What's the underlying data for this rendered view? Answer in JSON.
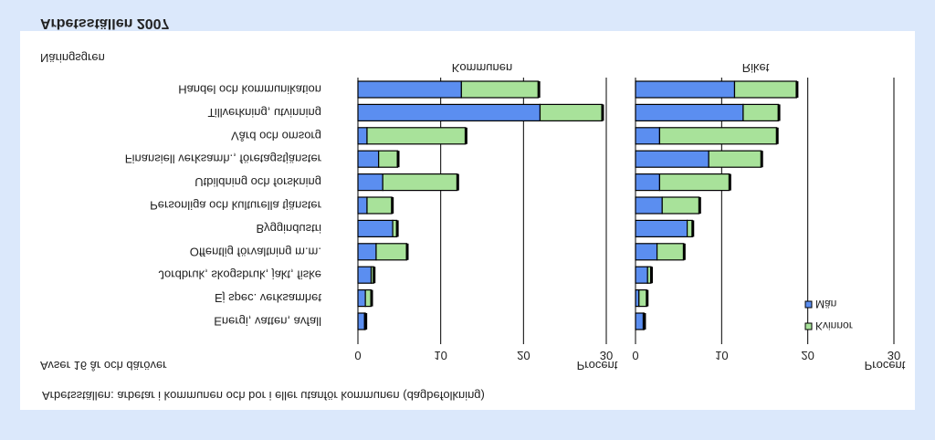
{
  "page_title": "Arbetsställen 2007",
  "subtitle": "Arbetsställen: arbetar i kommunen och bor i eller utanför kommunen (dagbefolkning)",
  "scope_note": "Avser 16 år och däröver",
  "category_heading": "Näringsgren",
  "colors": {
    "men": "#5b8ef0",
    "women": "#a8e29a",
    "page_bg": "#dbe8fb",
    "panel_bg": "#ffffff",
    "grid": "#000000"
  },
  "chart_data": [
    {
      "type": "bar",
      "orientation": "horizontal",
      "stacked": true,
      "panel_label": "Kommunen",
      "xlabel": "Procent",
      "xlim": [
        0,
        30
      ],
      "xticks": [
        0,
        10,
        20,
        30
      ],
      "grid": true,
      "categories": [
        "Energi, vatten, avfall",
        "Ej spec. verksamhet",
        "Jordbruk, skogsbruk, jakt, fiske",
        "Offentlig förvaltning m.m.",
        "Byggindustri",
        "Personliga och kulturella tjänster",
        "Utbildning och forskning",
        "Finansiell verksamh., företagstjänster",
        "Vård och omsorg",
        "Tillverkning, utvinning",
        "Handel och kommunikation"
      ],
      "series": [
        {
          "key": "men",
          "values": [
            0.8,
            0.9,
            1.6,
            2.2,
            4.2,
            1.1,
            3.0,
            2.5,
            1.1,
            22.0,
            12.5
          ]
        },
        {
          "key": "women",
          "values": [
            0.1,
            0.7,
            0.3,
            3.7,
            0.5,
            3.0,
            9.0,
            2.3,
            11.9,
            7.5,
            9.3
          ]
        }
      ]
    },
    {
      "type": "bar",
      "orientation": "horizontal",
      "stacked": true,
      "panel_label": "Riket",
      "xlabel": "Procent",
      "xlim": [
        0,
        30
      ],
      "xticks": [
        0,
        10,
        20,
        30
      ],
      "grid": true,
      "legend": [
        "Kvinnor",
        "Män"
      ],
      "legend_placement": "top-right",
      "categories": [
        "Energi, vatten, avfall",
        "Ej spec. verksamhet",
        "Jordbruk, skogsbruk, jakt, fiske",
        "Offentlig förvaltning m.m.",
        "Byggindustri",
        "Personliga och kulturella tjänster",
        "Utbildning och forskning",
        "Finansiell verksamh., företagstjänster",
        "Vård och omsorg",
        "Tillverkning, utvinning",
        "Handel och kommunikation"
      ],
      "series": [
        {
          "key": "men",
          "values": [
            0.9,
            0.4,
            1.4,
            2.5,
            6.0,
            3.1,
            2.8,
            8.5,
            2.8,
            12.5,
            11.5
          ]
        },
        {
          "key": "women",
          "values": [
            0.1,
            0.9,
            0.4,
            3.1,
            0.6,
            4.3,
            8.1,
            6.1,
            13.6,
            4.1,
            7.2
          ]
        }
      ]
    }
  ]
}
